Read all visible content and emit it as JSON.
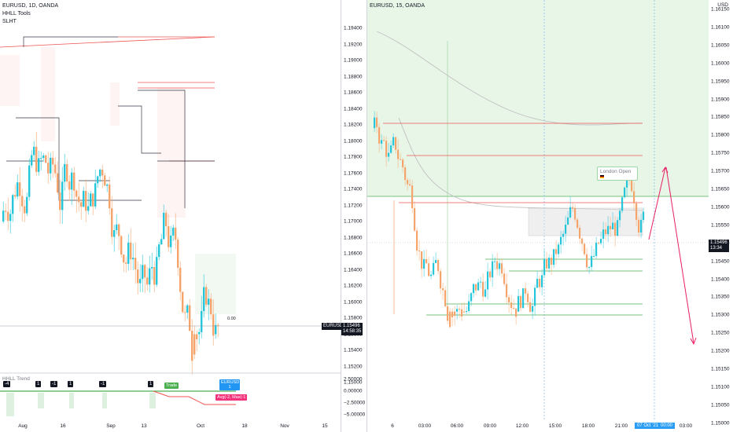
{
  "left": {
    "legend": [
      "EURUSD, 1D, OANDA",
      "HHLL Tools",
      "SLHT"
    ],
    "price_ticks": [
      "1.19400",
      "1.19200",
      "1.19000",
      "1.18800",
      "1.18600",
      "1.18400",
      "1.18200",
      "1.18000",
      "1.17800",
      "1.17600",
      "1.17400",
      "1.17200",
      "1.17000",
      "1.16800",
      "1.16600",
      "1.16400",
      "1.16200",
      "1.16000",
      "1.15800",
      "1.15600",
      "1.15400",
      "1.15200",
      "1.15000"
    ],
    "symbol_tag": "EURUSD",
    "last_price": "1.15496",
    "countdown": "14:58:35",
    "time_labels": [
      "Aug",
      "16",
      "Sep",
      "13",
      "Oct",
      "18",
      "Nov",
      "15"
    ],
    "indicator_title": "HHLL Trend",
    "indicator_ticks": [
      "2.50000",
      "0.00000",
      "−2.50000",
      "−5.00000"
    ],
    "badges": [
      "-4",
      "1",
      "-1",
      "1",
      "-1",
      "1"
    ],
    "trade_label": "Trade",
    "blue_label": "EURUSD\n1",
    "pink_label": "Avg(-2, Max(-1",
    "box_label": "0.00"
  },
  "right": {
    "legend": [
      "EURUSD, 15, OANDA"
    ],
    "axis_unit": "USD",
    "price_ticks": [
      "1.16150",
      "1.16100",
      "1.16050",
      "1.16000",
      "1.15950",
      "1.15900",
      "1.15850",
      "1.15800",
      "1.15750",
      "1.15700",
      "1.15650",
      "1.15600",
      "1.15550",
      "1.15500",
      "1.15450",
      "1.15400",
      "1.15350",
      "1.15300",
      "1.15250",
      "1.15200",
      "1.15150",
      "1.15100",
      "1.15050",
      "1.15000"
    ],
    "last_price": "1.15496",
    "countdown": "13:34",
    "time_labels": [
      "6",
      "03:00",
      "06:00",
      "09:00",
      "12:00",
      "15:00",
      "18:00",
      "21:00",
      "03:00"
    ],
    "time_tag_date": "07 Oct '21",
    "time_tag_time": "00:00",
    "callout": "London Open"
  },
  "colors": {
    "bull": "#26c6da",
    "bear": "#f5a46b",
    "resistance": "#ef5350",
    "support": "#4caf50",
    "zone": "#e8f6e8",
    "forecast": "#e91e63"
  }
}
